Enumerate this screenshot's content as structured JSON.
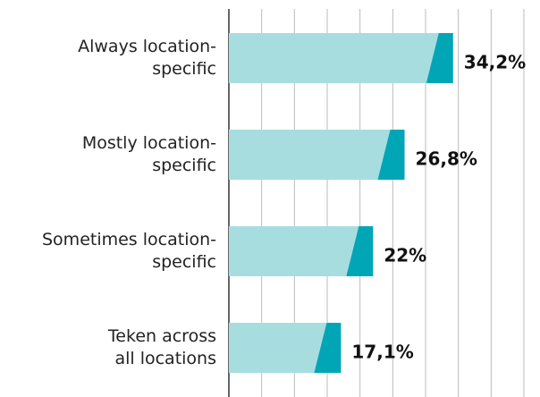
{
  "chart_data": {
    "type": "barh",
    "categories": [
      "Always location-\nspecific",
      "Mostly location-\nspecific",
      "Sometimes location-\nspecific",
      "Teken across\nall locations"
    ],
    "values": [
      34.2,
      26.8,
      22,
      17.1
    ],
    "value_labels": [
      "34,2%",
      "26,8%",
      "22%",
      "17,1%"
    ],
    "color": "#a8dde0",
    "end_color": "#00a6b5",
    "xlim": [
      0,
      45
    ],
    "xticks": [
      0,
      5,
      10,
      15,
      20,
      25,
      30,
      35,
      40,
      45
    ],
    "grid": true
  }
}
